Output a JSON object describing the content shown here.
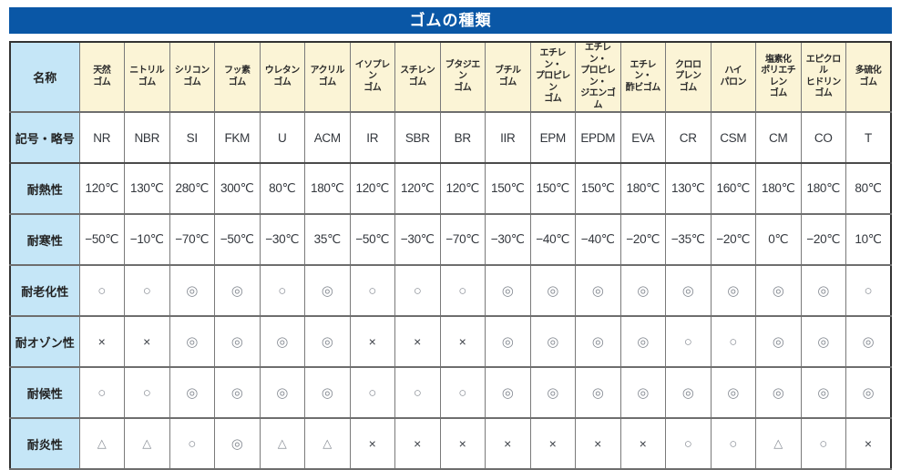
{
  "page_title": "ゴムの種類",
  "colors": {
    "title_bg": "#0a57a6",
    "column_header_bg": "#fbf4d6",
    "row_header_bg": "#c5e6f7",
    "border_dark": "#333333"
  },
  "table": {
    "corner_label": "名称",
    "row_labels": {
      "symbol": "記号・略号",
      "heat": "耐熱性",
      "cold": "耐寒性",
      "aging": "耐老化性",
      "ozone": "耐オゾン性",
      "weather": "耐候性",
      "flame": "耐炎性"
    },
    "columns": [
      {
        "name": "天然\nゴム",
        "symbol": "NR",
        "heat": "120℃",
        "cold": "−50℃",
        "aging": "○",
        "ozone": "×",
        "weather": "○",
        "flame": "△"
      },
      {
        "name": "ニトリル\nゴム",
        "symbol": "NBR",
        "heat": "130℃",
        "cold": "−10℃",
        "aging": "○",
        "ozone": "×",
        "weather": "○",
        "flame": "△"
      },
      {
        "name": "シリコン\nゴム",
        "symbol": "SI",
        "heat": "280℃",
        "cold": "−70℃",
        "aging": "◎",
        "ozone": "◎",
        "weather": "◎",
        "flame": "○"
      },
      {
        "name": "フッ素\nゴム",
        "symbol": "FKM",
        "heat": "300℃",
        "cold": "−50℃",
        "aging": "◎",
        "ozone": "◎",
        "weather": "◎",
        "flame": "◎"
      },
      {
        "name": "ウレタン\nゴム",
        "symbol": "U",
        "heat": "80℃",
        "cold": "−30℃",
        "aging": "○",
        "ozone": "◎",
        "weather": "◎",
        "flame": "△"
      },
      {
        "name": "アクリル\nゴム",
        "symbol": "ACM",
        "heat": "180℃",
        "cold": "35℃",
        "aging": "◎",
        "ozone": "◎",
        "weather": "◎",
        "flame": "△"
      },
      {
        "name": "イソプレン\nゴム",
        "symbol": "IR",
        "heat": "120℃",
        "cold": "−50℃",
        "aging": "○",
        "ozone": "×",
        "weather": "○",
        "flame": "×"
      },
      {
        "name": "スチレン\nゴム",
        "symbol": "SBR",
        "heat": "120℃",
        "cold": "−30℃",
        "aging": "○",
        "ozone": "×",
        "weather": "○",
        "flame": "×"
      },
      {
        "name": "ブタジエン\nゴム",
        "symbol": "BR",
        "heat": "120℃",
        "cold": "−70℃",
        "aging": "○",
        "ozone": "×",
        "weather": "○",
        "flame": "×"
      },
      {
        "name": "ブチル\nゴム",
        "symbol": "IIR",
        "heat": "150℃",
        "cold": "−30℃",
        "aging": "◎",
        "ozone": "◎",
        "weather": "◎",
        "flame": "×"
      },
      {
        "name": "エチレン・\nプロピレン\nゴム",
        "symbol": "EPM",
        "heat": "150℃",
        "cold": "−40℃",
        "aging": "◎",
        "ozone": "◎",
        "weather": "◎",
        "flame": "×"
      },
      {
        "name": "エチレン・\nプロピレン・\nジエンゴム",
        "symbol": "EPDM",
        "heat": "150℃",
        "cold": "−40℃",
        "aging": "◎",
        "ozone": "◎",
        "weather": "◎",
        "flame": "×"
      },
      {
        "name": "エチレン・\n酢ビゴム",
        "symbol": "EVA",
        "heat": "180℃",
        "cold": "−20℃",
        "aging": "◎",
        "ozone": "◎",
        "weather": "◎",
        "flame": "×"
      },
      {
        "name": "クロロ\nプレン\nゴム",
        "symbol": "CR",
        "heat": "130℃",
        "cold": "−35℃",
        "aging": "◎",
        "ozone": "○",
        "weather": "◎",
        "flame": "○"
      },
      {
        "name": "ハイ\nパロン",
        "symbol": "CSM",
        "heat": "160℃",
        "cold": "−20℃",
        "aging": "◎",
        "ozone": "○",
        "weather": "◎",
        "flame": "○"
      },
      {
        "name": "塩素化\nポリエチレン\nゴム",
        "symbol": "CM",
        "heat": "180℃",
        "cold": "0℃",
        "aging": "◎",
        "ozone": "◎",
        "weather": "◎",
        "flame": "△"
      },
      {
        "name": "エピクロル\nヒドリン\nゴム",
        "symbol": "CO",
        "heat": "180℃",
        "cold": "−20℃",
        "aging": "◎",
        "ozone": "◎",
        "weather": "◎",
        "flame": "○"
      },
      {
        "name": "多硫化\nゴム",
        "symbol": "T",
        "heat": "80℃",
        "cold": "10℃",
        "aging": "○",
        "ozone": "◎",
        "weather": "◎",
        "flame": "×"
      }
    ]
  }
}
